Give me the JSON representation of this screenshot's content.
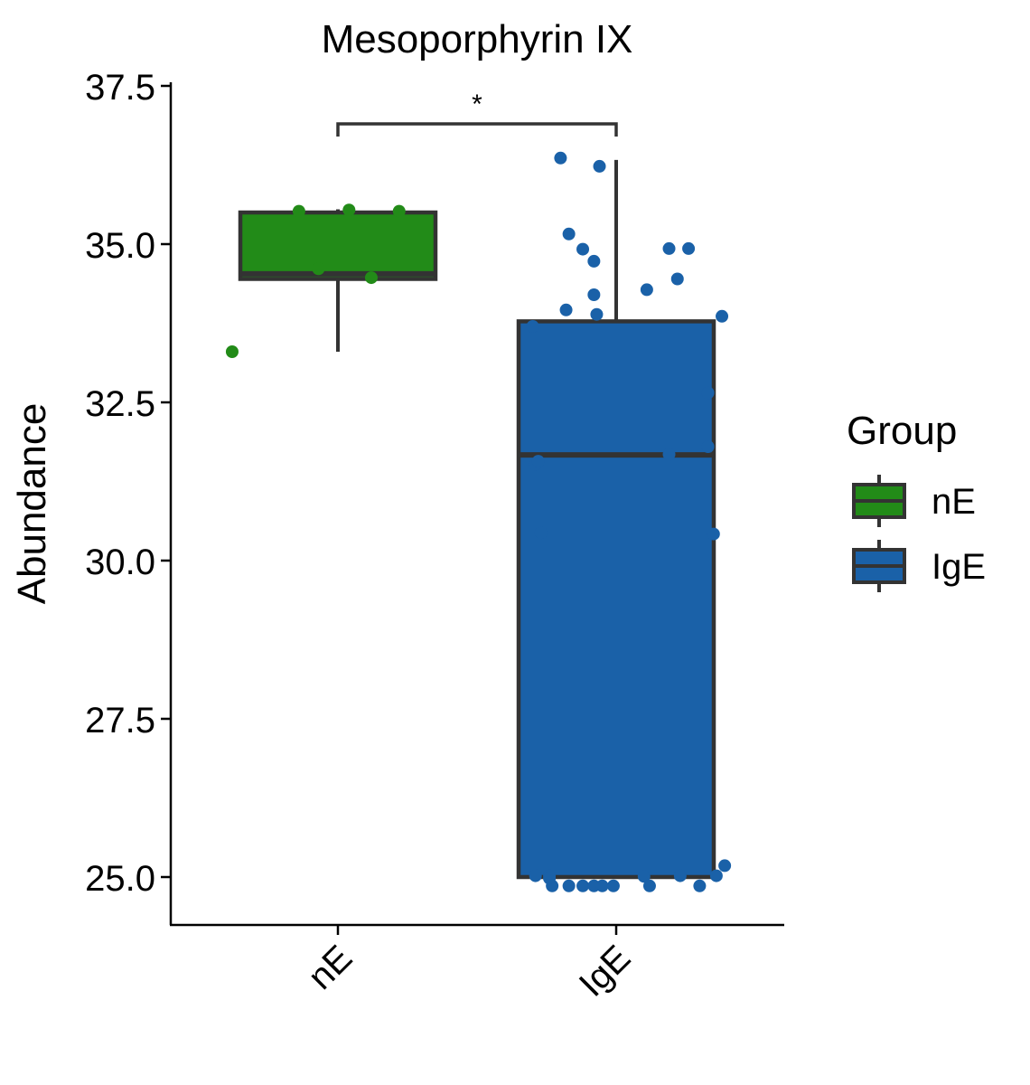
{
  "chart_data": {
    "type": "box",
    "title": "Mesoporphyrin IX",
    "xlabel": "",
    "ylabel": "Abundance",
    "ylim": [
      24.25,
      37.65
    ],
    "yticks": [
      "25.0",
      "27.5",
      "30.0",
      "32.5",
      "35.0",
      "37.5"
    ],
    "ytick_values": [
      25.0,
      27.5,
      30.0,
      32.5,
      35.0,
      37.5
    ],
    "categories": [
      "nE",
      "IgE"
    ],
    "significance": {
      "label": "*",
      "between": [
        "nE",
        "IgE"
      ],
      "y": 36.9
    },
    "legend": {
      "title": "Group",
      "position": "right",
      "entries": [
        {
          "label": "nE",
          "color": "#228B18"
        },
        {
          "label": "IgE",
          "color": "#1A61A8"
        }
      ]
    },
    "boxes": [
      {
        "category": "nE",
        "color": "#228B18",
        "whisker_low": 33.3,
        "q1": 34.45,
        "median": 34.53,
        "q3": 35.5,
        "whisker_high": 35.55,
        "points": [
          {
            "x": 0.62,
            "y": 33.3
          },
          {
            "x": 0.86,
            "y": 35.52
          },
          {
            "x": 0.93,
            "y": 34.61
          },
          {
            "x": 1.04,
            "y": 35.54
          },
          {
            "x": 1.12,
            "y": 34.47
          },
          {
            "x": 1.22,
            "y": 35.52
          }
        ]
      },
      {
        "category": "IgE",
        "color": "#1A61A8",
        "whisker_low": 25.0,
        "q1": 25.0,
        "median": 31.67,
        "q3": 33.78,
        "whisker_high": 36.33,
        "points": [
          {
            "x": 1.7,
            "y": 33.7
          },
          {
            "x": 1.71,
            "y": 31.52
          },
          {
            "x": 1.72,
            "y": 31.57
          },
          {
            "x": 1.73,
            "y": 30.44
          },
          {
            "x": 1.71,
            "y": 25.02
          },
          {
            "x": 1.76,
            "y": 25.02
          },
          {
            "x": 1.77,
            "y": 24.86
          },
          {
            "x": 1.83,
            "y": 24.86
          },
          {
            "x": 1.88,
            "y": 24.86
          },
          {
            "x": 1.76,
            "y": 24.98
          },
          {
            "x": 1.8,
            "y": 36.36
          },
          {
            "x": 1.82,
            "y": 33.96
          },
          {
            "x": 1.83,
            "y": 35.16
          },
          {
            "x": 1.88,
            "y": 34.92
          },
          {
            "x": 1.92,
            "y": 34.2
          },
          {
            "x": 1.92,
            "y": 34.73
          },
          {
            "x": 1.93,
            "y": 33.89
          },
          {
            "x": 1.94,
            "y": 36.23
          },
          {
            "x": 1.92,
            "y": 24.86
          },
          {
            "x": 1.95,
            "y": 24.86
          },
          {
            "x": 1.99,
            "y": 24.86
          },
          {
            "x": 2.11,
            "y": 34.28
          },
          {
            "x": 2.1,
            "y": 25.01
          },
          {
            "x": 2.12,
            "y": 24.86
          },
          {
            "x": 2.19,
            "y": 31.68
          },
          {
            "x": 2.19,
            "y": 34.93
          },
          {
            "x": 2.22,
            "y": 34.45
          },
          {
            "x": 2.23,
            "y": 25.02
          },
          {
            "x": 2.26,
            "y": 34.93
          },
          {
            "x": 2.3,
            "y": 24.86
          },
          {
            "x": 2.33,
            "y": 32.65
          },
          {
            "x": 2.33,
            "y": 31.8
          },
          {
            "x": 2.35,
            "y": 30.42
          },
          {
            "x": 2.36,
            "y": 25.02
          },
          {
            "x": 2.38,
            "y": 33.86
          },
          {
            "x": 2.39,
            "y": 25.18
          }
        ]
      }
    ]
  }
}
